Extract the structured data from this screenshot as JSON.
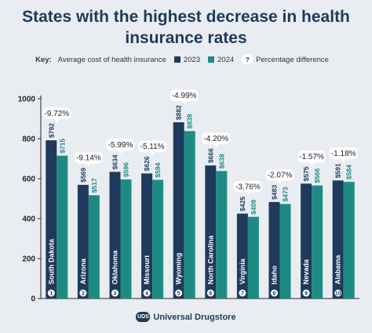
{
  "chart_data": {
    "type": "bar",
    "title": "States with the highest decrease in health insurance rates",
    "key": {
      "label": "Key:",
      "description": "Average cost of health insurance",
      "diff_label": "Percentage difference",
      "diff_icon": "?"
    },
    "categories": [
      "South Dakota",
      "Arizona",
      "Oklahoma",
      "Missouri",
      "Wyoming",
      "North Carolina",
      "Virginia",
      "Idaho",
      "Nevada",
      "Alabama"
    ],
    "ranks": [
      "1",
      "2",
      "3",
      "4",
      "5",
      "6",
      "7",
      "8",
      "9",
      "10"
    ],
    "series": [
      {
        "name": "2023",
        "color": "#1f3a5c",
        "values": [
          792,
          569,
          634,
          626,
          882,
          666,
          425,
          483,
          575,
          591
        ],
        "labels": [
          "$792",
          "$569",
          "$634",
          "$626",
          "$882",
          "$666",
          "$425",
          "$483",
          "$575",
          "$591"
        ]
      },
      {
        "name": "2024",
        "color": "#1e8a84",
        "values": [
          715,
          517,
          596,
          594,
          838,
          638,
          409,
          473,
          566,
          584
        ],
        "labels": [
          "$715",
          "$517",
          "$596",
          "$594",
          "$838",
          "$638",
          "$409",
          "$473",
          "$566",
          "$584"
        ]
      }
    ],
    "differences": [
      "-9.72%",
      "-9.14%",
      "-5.99%",
      "-5.11%",
      "-4.99%",
      "-4.20%",
      "-3.76%",
      "-2.07%",
      "-1.57%",
      "-1.18%"
    ],
    "yticks": [
      0,
      200,
      400,
      600,
      800,
      1000
    ],
    "ylim": [
      0,
      1000
    ],
    "grid": false,
    "legend_position": "top"
  },
  "footer": {
    "logo_text": "UDS",
    "brand": "Universal Drugstore"
  }
}
